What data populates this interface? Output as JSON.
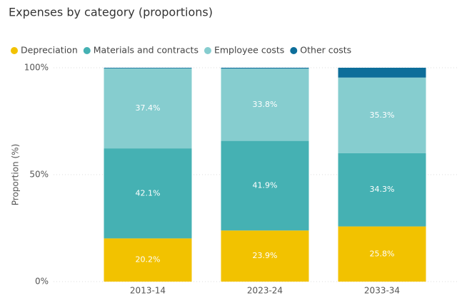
{
  "chart_data": {
    "type": "stacked_bar",
    "title": "Expenses by category (proportions)",
    "y_label": "Proportion (%)",
    "categories": [
      "2013-14",
      "2023-24",
      "2033-34"
    ],
    "series": [
      {
        "name": "Depreciation",
        "color": "#f2c200",
        "values": [
          20.2,
          23.9,
          25.8
        ],
        "value_labels": [
          "20.2%",
          "23.9%",
          "25.8%"
        ]
      },
      {
        "name": "Materials and contracts",
        "color": "#45b1b3",
        "values": [
          42.1,
          41.9,
          34.3
        ],
        "value_labels": [
          "42.1%",
          "41.9%",
          "34.3%"
        ]
      },
      {
        "name": "Employee costs",
        "color": "#86cdcf",
        "values": [
          37.4,
          33.8,
          35.3
        ],
        "value_labels": [
          "37.4%",
          "33.8%",
          "35.3%"
        ]
      },
      {
        "name": "Other costs",
        "color": "#0d6e9a",
        "values": [
          0.3,
          0.4,
          4.6
        ]
      }
    ],
    "ylim": [
      0,
      100
    ],
    "yticks": [
      {
        "value": 0,
        "label": "0%"
      },
      {
        "value": 50,
        "label": "50%"
      },
      {
        "value": 100,
        "label": "100%"
      }
    ],
    "grid": true
  }
}
